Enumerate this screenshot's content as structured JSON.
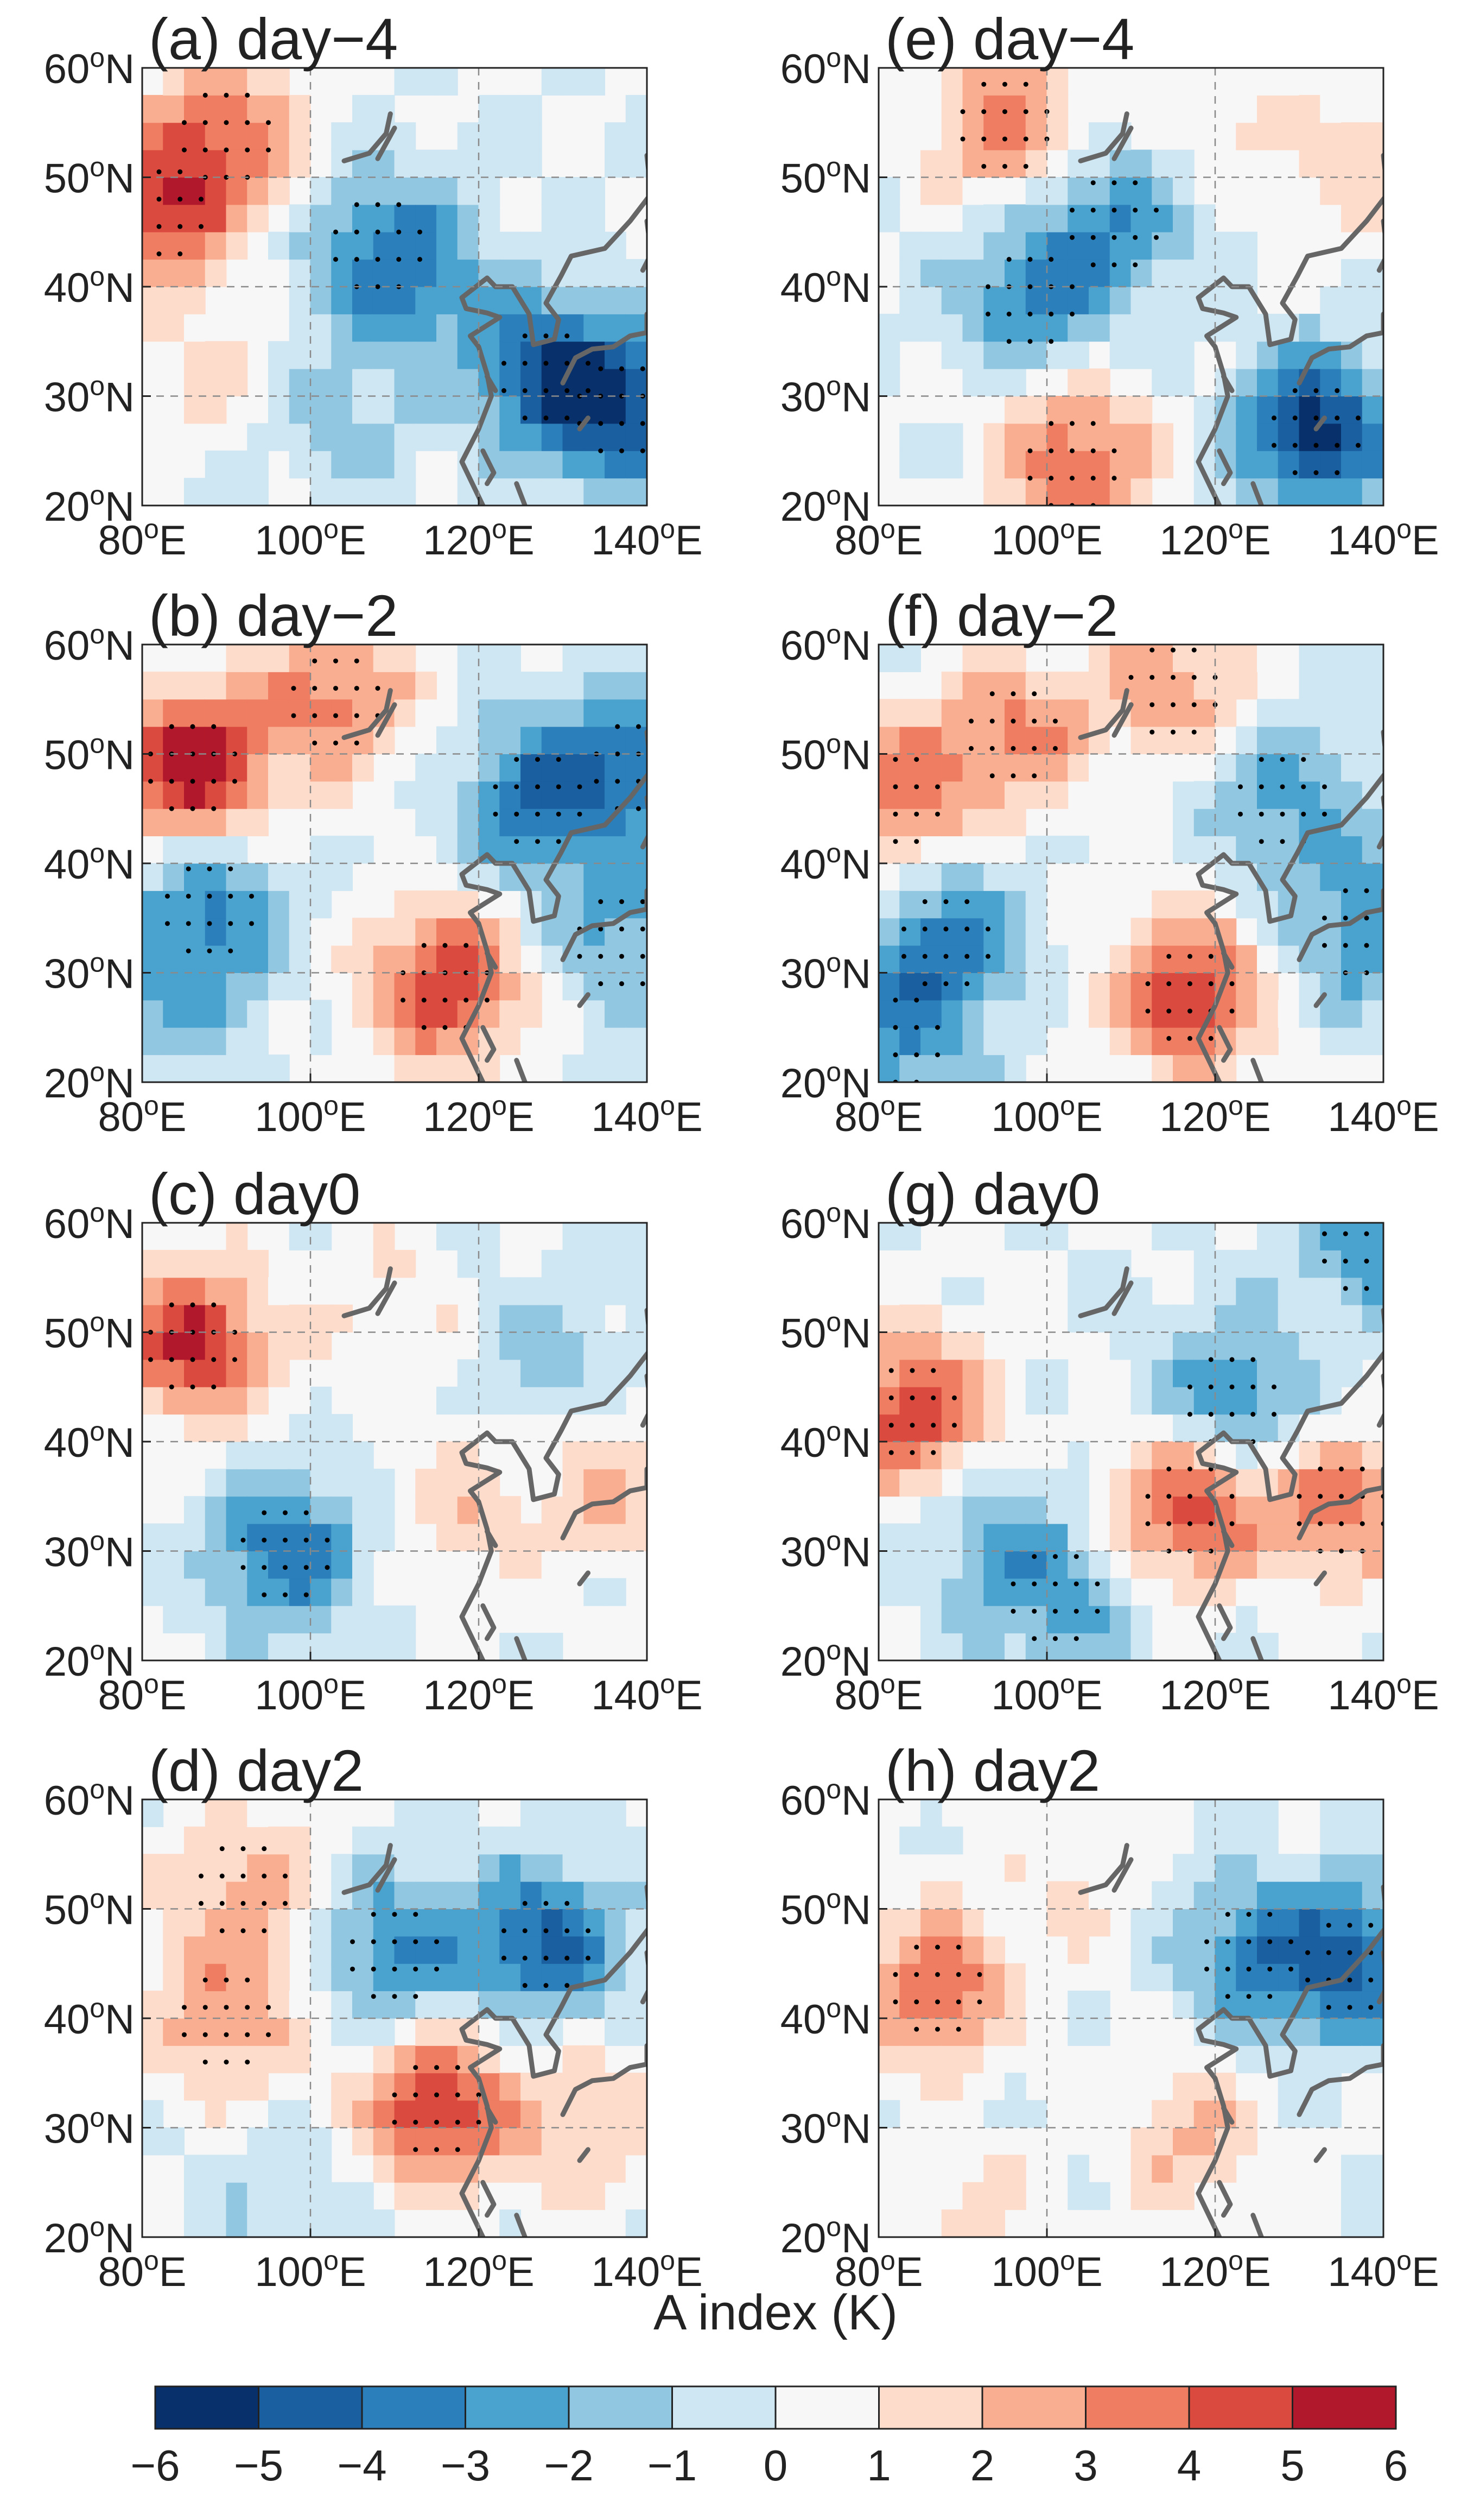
{
  "chart_data": {
    "type": "heatmap",
    "colorbar": {
      "title": "A index (K)",
      "ticks": [
        "−6",
        "−5",
        "−4",
        "−3",
        "−2",
        "−1",
        "0",
        "1",
        "2",
        "3",
        "4",
        "5",
        "6"
      ],
      "levels": [
        -6,
        -5,
        -4,
        -3,
        -2,
        -1,
        0,
        1,
        2,
        3,
        4,
        5,
        6
      ],
      "colors": [
        "#08306b",
        "#1a5fa0",
        "#2b7fba",
        "#4aa3cf",
        "#92c7e2",
        "#cfe6f3",
        "#f7f7f7",
        "#fddccb",
        "#f9ae91",
        "#ef7d62",
        "#db4a3f",
        "#b2182b"
      ]
    },
    "axes": {
      "lon_range": [
        80,
        140
      ],
      "lat_range": [
        20,
        60
      ],
      "x_ticks": [
        80,
        100,
        120,
        140
      ],
      "y_ticks": [
        20,
        30,
        40,
        50,
        60
      ],
      "x_tick_labels": [
        {
          "num": "80",
          "sup": "o",
          "unit": "E"
        },
        {
          "num": "100",
          "sup": "o",
          "unit": "E"
        },
        {
          "num": "120",
          "sup": "o",
          "unit": "E"
        },
        {
          "num": "140",
          "sup": "o",
          "unit": "E"
        }
      ],
      "y_tick_labels": [
        {
          "num": "20",
          "sup": "o",
          "unit": "N"
        },
        {
          "num": "30",
          "sup": "o",
          "unit": "N"
        },
        {
          "num": "40",
          "sup": "o",
          "unit": "N"
        },
        {
          "num": "50",
          "sup": "o",
          "unit": "N"
        },
        {
          "num": "60",
          "sup": "o",
          "unit": "N"
        }
      ],
      "grid": "dashed"
    },
    "panels": [
      {
        "id": "a",
        "title": "(a) day−4",
        "anomalies": [
          {
            "lon": 82,
            "lat": 47,
            "value": 4.5
          },
          {
            "lon": 90,
            "lat": 54,
            "value": 3.5
          },
          {
            "lon": 88,
            "lat": 32,
            "value": 1.2
          },
          {
            "lon": 108,
            "lat": 44,
            "value": -2.5
          },
          {
            "lon": 113,
            "lat": 40,
            "value": -2.2
          },
          {
            "lon": 128,
            "lat": 32,
            "value": -4
          },
          {
            "lon": 137,
            "lat": 29,
            "value": -4.5
          },
          {
            "lon": 103,
            "lat": 28,
            "value": -1.5
          }
        ]
      },
      {
        "id": "b",
        "title": "(b) day−2",
        "anomalies": [
          {
            "lon": 86,
            "lat": 49,
            "value": 6
          },
          {
            "lon": 103,
            "lat": 55,
            "value": 3.5
          },
          {
            "lon": 116,
            "lat": 29,
            "value": 5
          },
          {
            "lon": 127,
            "lat": 46,
            "value": -3.8
          },
          {
            "lon": 139,
            "lat": 49,
            "value": -3.3
          },
          {
            "lon": 88,
            "lat": 36,
            "value": -3
          },
          {
            "lon": 84,
            "lat": 28,
            "value": -2
          },
          {
            "lon": 137,
            "lat": 33,
            "value": -2.5
          }
        ]
      },
      {
        "id": "c",
        "title": "(c) day0",
        "anomalies": [
          {
            "lon": 86,
            "lat": 49,
            "value": 5.2
          },
          {
            "lon": 97,
            "lat": 30,
            "value": -3.8
          },
          {
            "lon": 128,
            "lat": 48,
            "value": -1.5
          },
          {
            "lon": 118,
            "lat": 34,
            "value": 1.6
          },
          {
            "lon": 136,
            "lat": 36,
            "value": 2
          },
          {
            "lon": 110,
            "lat": 52,
            "value": 1.2
          }
        ]
      },
      {
        "id": "d",
        "title": "(d) day2",
        "anomalies": [
          {
            "lon": 115,
            "lat": 32,
            "value": 5
          },
          {
            "lon": 90,
            "lat": 40,
            "value": 2.8
          },
          {
            "lon": 92,
            "lat": 52,
            "value": 2.5
          },
          {
            "lon": 110,
            "lat": 46,
            "value": -3.2
          },
          {
            "lon": 128,
            "lat": 47,
            "value": -4.2
          },
          {
            "lon": 98,
            "lat": 21,
            "value": -1.2
          },
          {
            "lon": 133,
            "lat": 30,
            "value": 2
          }
        ]
      },
      {
        "id": "e",
        "title": "(e) day−4",
        "anomalies": [
          {
            "lon": 95,
            "lat": 55,
            "value": 3.5
          },
          {
            "lon": 103,
            "lat": 24,
            "value": 4
          },
          {
            "lon": 132,
            "lat": 27,
            "value": -5.5
          },
          {
            "lon": 98,
            "lat": 39,
            "value": -3
          },
          {
            "lon": 108,
            "lat": 46,
            "value": -2.8
          },
          {
            "lon": 138,
            "lat": 52,
            "value": 1.5
          },
          {
            "lon": 122,
            "lat": 55,
            "value": 1.2
          }
        ]
      },
      {
        "id": "f",
        "title": "(f) day−2",
        "anomalies": [
          {
            "lon": 82,
            "lat": 46,
            "value": 3.8
          },
          {
            "lon": 96,
            "lat": 52,
            "value": 3.2
          },
          {
            "lon": 115,
            "lat": 56,
            "value": 2.8
          },
          {
            "lon": 117,
            "lat": 28,
            "value": 5
          },
          {
            "lon": 88,
            "lat": 33,
            "value": -3.5
          },
          {
            "lon": 82,
            "lat": 24,
            "value": -2.6
          },
          {
            "lon": 128,
            "lat": 46,
            "value": -2.5
          },
          {
            "lon": 138,
            "lat": 34,
            "value": -3
          }
        ]
      },
      {
        "id": "g",
        "title": "(g) day0",
        "anomalies": [
          {
            "lon": 84,
            "lat": 43,
            "value": 4.8
          },
          {
            "lon": 117,
            "lat": 34,
            "value": 4.5
          },
          {
            "lon": 135,
            "lat": 34,
            "value": 3.5
          },
          {
            "lon": 122,
            "lat": 44,
            "value": -3.2
          },
          {
            "lon": 101,
            "lat": 26,
            "value": -2.5
          },
          {
            "lon": 138,
            "lat": 58,
            "value": -2.5
          },
          {
            "lon": 92,
            "lat": 31,
            "value": -1.5
          }
        ]
      },
      {
        "id": "h",
        "title": "(h) day2",
        "anomalies": [
          {
            "lon": 87,
            "lat": 43,
            "value": 4
          },
          {
            "lon": 117,
            "lat": 29,
            "value": 2.2
          },
          {
            "lon": 136,
            "lat": 45,
            "value": -4.2
          },
          {
            "lon": 124,
            "lat": 46,
            "value": -2.8
          },
          {
            "lon": 90,
            "lat": 22,
            "value": 1.2
          },
          {
            "lon": 104,
            "lat": 52,
            "value": 1
          }
        ]
      }
    ]
  }
}
